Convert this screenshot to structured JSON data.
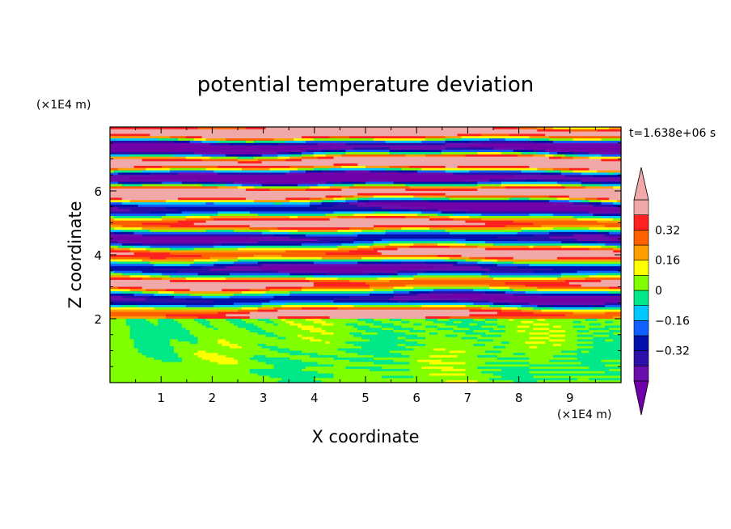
{
  "chart_data": {
    "type": "heatmap",
    "title": "potential temperature deviation",
    "xlabel": "X coordinate",
    "ylabel": "Z coordinate",
    "x_unit": "(×1E4 m)",
    "y_unit": "(×1E4 m)",
    "time_label": "t=1.638e+06 s",
    "xlim": [
      0,
      10
    ],
    "ylim": [
      0,
      8
    ],
    "x_ticks": [
      1,
      2,
      3,
      4,
      5,
      6,
      7,
      8,
      9
    ],
    "y_ticks": [
      2,
      4,
      6
    ],
    "x_tick_labels": [
      "1",
      "2",
      "3",
      "4",
      "5",
      "6",
      "7",
      "8",
      "9"
    ],
    "y_tick_labels": [
      "2",
      "4",
      "6"
    ],
    "colorbar": {
      "levels": [
        -0.48,
        -0.4,
        -0.32,
        -0.24,
        -0.16,
        -0.08,
        0,
        0.08,
        0.16,
        0.24,
        0.32,
        0.4,
        0.48
      ],
      "colors": [
        "#6a0dad",
        "#2a0fa8",
        "#0010a8",
        "#1060ff",
        "#00c8ff",
        "#00e888",
        "#80ff00",
        "#ffff00",
        "#ffa000",
        "#ff6000",
        "#ff2020",
        "#f0a8a8"
      ],
      "tick_values": [
        0.32,
        0.16,
        0,
        -0.16,
        -0.32
      ],
      "tick_labels": [
        "0.32",
        "0.16",
        "0",
        "−0.16",
        "−0.32"
      ],
      "extend": "both",
      "under_color": "#7000a8",
      "over_color": "#f0a8a8"
    }
  }
}
